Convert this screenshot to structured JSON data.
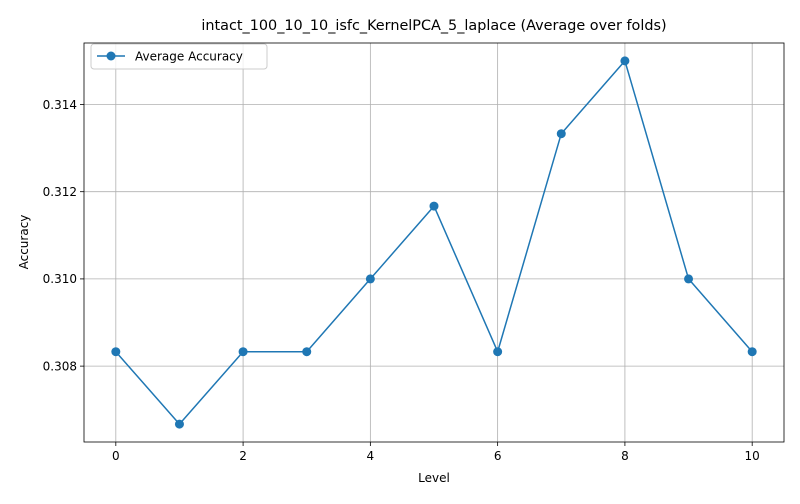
{
  "chart_data": {
    "type": "line",
    "title": "intact_100_10_10_isfc_KernelPCA_5_laplace (Average over folds)",
    "xlabel": "Level",
    "ylabel": "Accuracy",
    "x": [
      0,
      1,
      2,
      3,
      4,
      5,
      6,
      7,
      8,
      9,
      10
    ],
    "series": [
      {
        "name": "Average Accuracy",
        "color": "#1f77b4",
        "marker": "circle",
        "values": [
          0.30833,
          0.30667,
          0.30833,
          0.30833,
          0.31,
          0.31167,
          0.30833,
          0.31333,
          0.315,
          0.31,
          0.30833
        ]
      }
    ],
    "xlim": [
      -0.5,
      10.5
    ],
    "ylim": [
      0.30626,
      0.31541
    ],
    "xticks": [
      0,
      2,
      4,
      6,
      8,
      10
    ],
    "xtick_labels": [
      "0",
      "2",
      "4",
      "6",
      "8",
      "10"
    ],
    "yticks": [
      0.308,
      0.31,
      0.312,
      0.314
    ],
    "ytick_labels": [
      "0.308",
      "0.310",
      "0.312",
      "0.314"
    ],
    "grid": true,
    "legend_position": "upper-left"
  }
}
